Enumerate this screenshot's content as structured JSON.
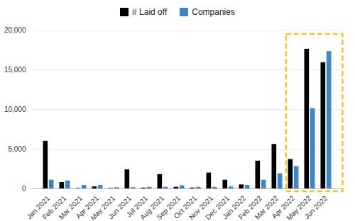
{
  "chart_data": {
    "type": "bar",
    "categories": [
      "Jan 2021",
      "Feb 2021",
      "Mar 2021",
      "Apr 2021",
      "May 2021",
      "Jun 2021",
      "Jul 2021",
      "Aug 2021",
      "Sep 2021",
      "Oct 2021",
      "Nov 2021",
      "Dec 2021",
      "Jan 2022",
      "Feb 2022",
      "Mar 2022",
      "Apr 2022",
      "May 2022",
      "Jun 2022"
    ],
    "series": [
      {
        "name": "# Laid off",
        "color": "#000000",
        "values": [
          6000,
          800,
          50,
          250,
          50,
          2400,
          100,
          1800,
          200,
          100,
          2000,
          1100,
          500,
          3500,
          5600,
          3700,
          17600,
          15900
        ]
      },
      {
        "name": "Companies",
        "color": "#3d85c6",
        "values": [
          1100,
          1000,
          450,
          450,
          150,
          150,
          200,
          200,
          400,
          200,
          200,
          250,
          450,
          1100,
          1900,
          2800,
          10100,
          17300
        ]
      }
    ],
    "ylim": [
      0,
      20000
    ],
    "yticks": [
      0,
      5000,
      10000,
      15000,
      20000
    ],
    "grid": true,
    "legend": "top"
  }
}
